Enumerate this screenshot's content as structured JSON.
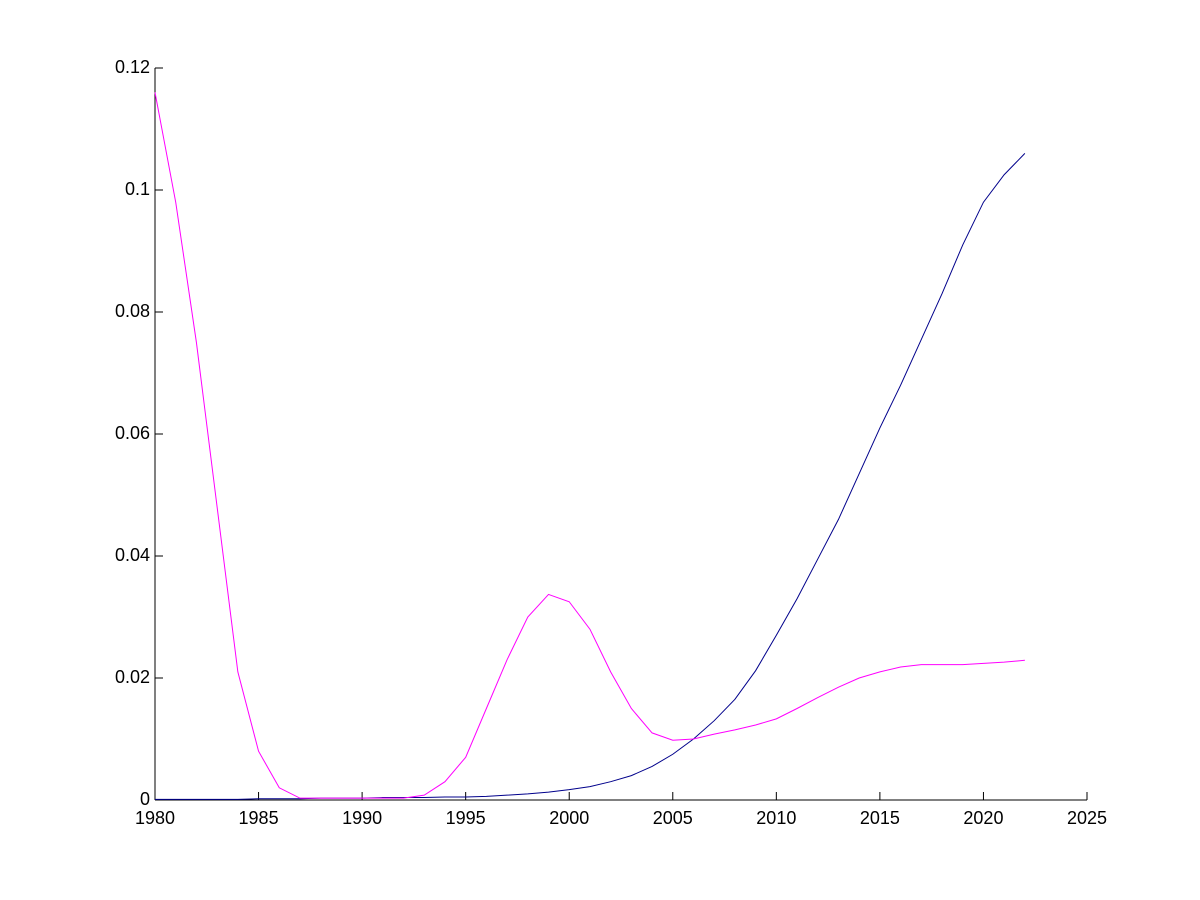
{
  "chart_data": {
    "type": "line",
    "x": [
      1980,
      1981,
      1982,
      1983,
      1984,
      1985,
      1986,
      1987,
      1988,
      1989,
      1990,
      1991,
      1992,
      1993,
      1994,
      1995,
      1996,
      1997,
      1998,
      1999,
      2000,
      2001,
      2002,
      2003,
      2004,
      2005,
      2006,
      2007,
      2008,
      2009,
      2010,
      2011,
      2012,
      2013,
      2014,
      2015,
      2016,
      2017,
      2018,
      2019,
      2020,
      2021,
      2022
    ],
    "series": [
      {
        "color": "#00008b",
        "values": [
          0.0001,
          0.0001,
          0.0001,
          0.0001,
          0.0001,
          0.0002,
          0.0002,
          0.0002,
          0.0003,
          0.0003,
          0.0003,
          0.0004,
          0.0004,
          0.0004,
          0.0005,
          0.0005,
          0.0006,
          0.0008,
          0.001,
          0.0013,
          0.0017,
          0.0022,
          0.003,
          0.004,
          0.0055,
          0.0075,
          0.01,
          0.013,
          0.0165,
          0.0212,
          0.027,
          0.033,
          0.0395,
          0.046,
          0.0535,
          0.061,
          0.068,
          0.0755,
          0.083,
          0.091,
          0.098,
          0.1025,
          0.106
        ]
      },
      {
        "color": "#ff00ff",
        "values": [
          0.116,
          0.098,
          0.075,
          0.048,
          0.021,
          0.008,
          0.002,
          0.0003,
          0.0003,
          0.0003,
          0.0003,
          0.0003,
          0.0003,
          0.0008,
          0.003,
          0.007,
          0.015,
          0.023,
          0.03,
          0.0337,
          0.0325,
          0.028,
          0.021,
          0.015,
          0.011,
          0.0098,
          0.01,
          0.0108,
          0.0115,
          0.0123,
          0.0133,
          0.015,
          0.0168,
          0.0185,
          0.02,
          0.021,
          0.0218,
          0.0222,
          0.0222,
          0.0222,
          0.0224,
          0.0226,
          0.0229
        ]
      }
    ],
    "xlim": [
      1980,
      2025
    ],
    "xticks": [
      1980,
      1985,
      1990,
      1995,
      2000,
      2005,
      2010,
      2015,
      2020,
      2025
    ],
    "ylim": [
      0,
      0.12
    ],
    "yticks": [
      0,
      0.02,
      0.04,
      0.06,
      0.08,
      0.1,
      0.12
    ]
  }
}
